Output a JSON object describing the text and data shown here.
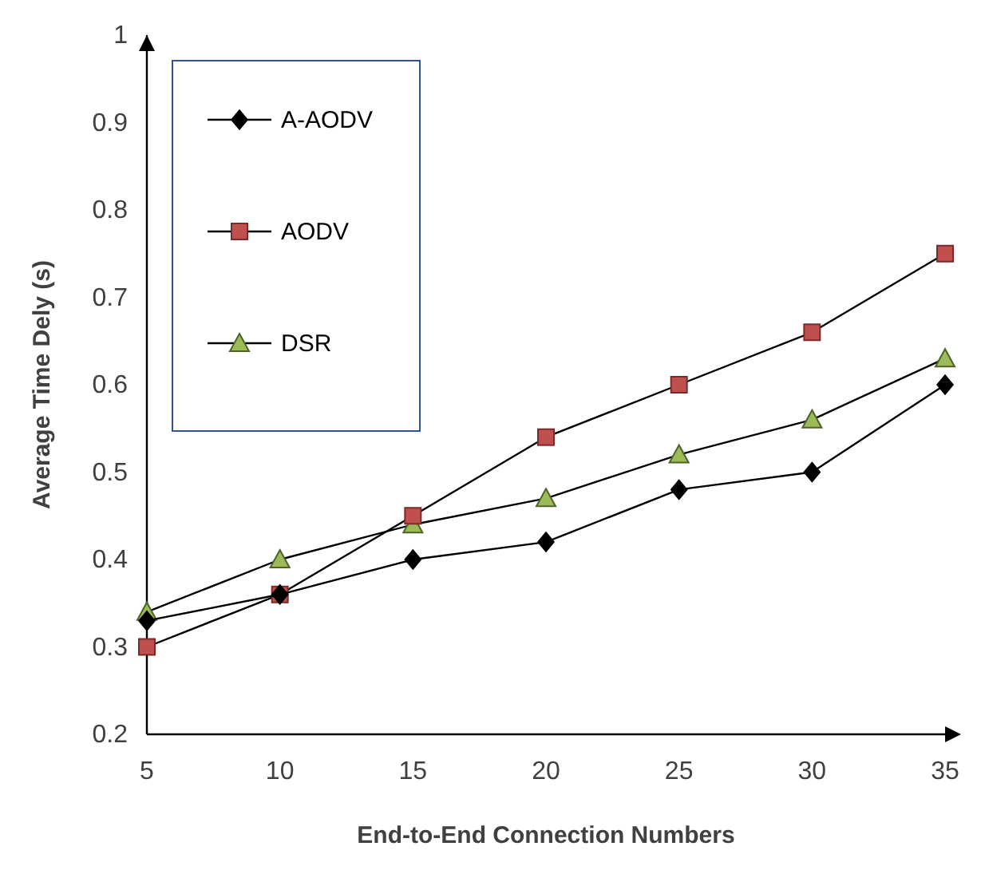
{
  "chart_data": {
    "type": "line",
    "xlabel": "End-to-End Connection Numbers",
    "ylabel": "Average Time Dely (s)",
    "x": [
      5,
      10,
      15,
      20,
      25,
      30,
      35
    ],
    "series": [
      {
        "name": "A-AODV",
        "color": "#000000",
        "marker": "diamond",
        "values": [
          0.33,
          0.36,
          0.4,
          0.42,
          0.48,
          0.5,
          0.6
        ]
      },
      {
        "name": "AODV",
        "color": "#c0504d",
        "marker": "square",
        "values": [
          0.3,
          0.36,
          0.45,
          0.54,
          0.6,
          0.66,
          0.75
        ]
      },
      {
        "name": "DSR",
        "color": "#9bbb59",
        "marker": "triangle",
        "values": [
          0.34,
          0.4,
          0.44,
          0.47,
          0.52,
          0.56,
          0.63
        ]
      }
    ],
    "xlim": [
      5,
      35
    ],
    "xticks": [
      5,
      10,
      15,
      20,
      25,
      30,
      35
    ],
    "ylim": [
      0.2,
      1
    ],
    "yticks": [
      0.2,
      0.3,
      0.4,
      0.5,
      0.6,
      0.7,
      0.8,
      0.9,
      1
    ],
    "grid": false,
    "legend": "top left",
    "line_style": "solid"
  }
}
